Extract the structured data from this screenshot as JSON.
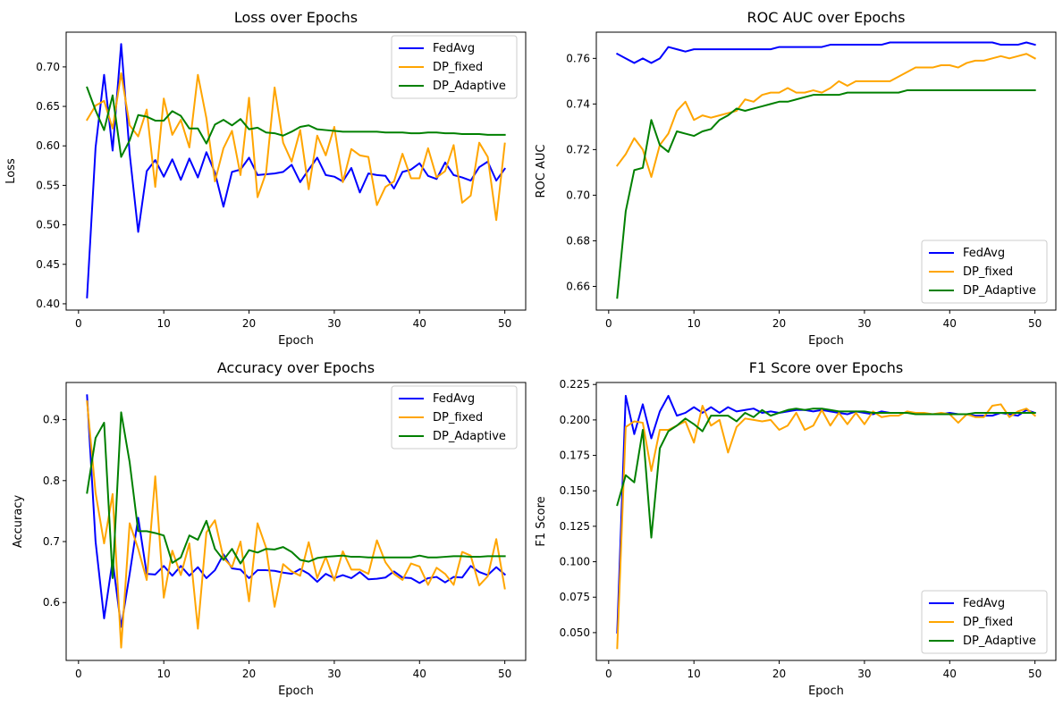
{
  "chart_data": [
    {
      "type": "line",
      "title": "Loss over Epochs",
      "xlabel": "Epoch",
      "ylabel": "Loss",
      "xlim": [
        -1.45,
        52.45
      ],
      "ylim": [
        0.392,
        0.744
      ],
      "xticks": [
        0,
        10,
        20,
        30,
        40,
        50
      ],
      "yticks": [
        0.4,
        0.45,
        0.5,
        0.55,
        0.6,
        0.65,
        0.7
      ],
      "ytick_format": 2,
      "legend": "top-right",
      "series": [
        {
          "name": "FedAvg",
          "color": "#0000ff",
          "values": [
            0.408,
            0.598,
            0.69,
            0.594,
            0.729,
            0.59,
            0.491,
            0.568,
            0.582,
            0.561,
            0.583,
            0.557,
            0.584,
            0.56,
            0.592,
            0.566,
            0.523,
            0.567,
            0.57,
            0.585,
            0.563,
            0.564,
            0.565,
            0.567,
            0.576,
            0.554,
            0.57,
            0.585,
            0.563,
            0.561,
            0.555,
            0.572,
            0.541,
            0.565,
            0.563,
            0.562,
            0.546,
            0.567,
            0.57,
            0.578,
            0.562,
            0.558,
            0.579,
            0.563,
            0.56,
            0.556,
            0.573,
            0.58,
            0.556,
            0.571
          ]
        },
        {
          "name": "DP_fixed",
          "color": "#ffa500",
          "values": [
            0.633,
            0.651,
            0.657,
            0.622,
            0.692,
            0.626,
            0.612,
            0.646,
            0.548,
            0.66,
            0.614,
            0.633,
            0.598,
            0.69,
            0.635,
            0.555,
            0.597,
            0.619,
            0.563,
            0.661,
            0.535,
            0.566,
            0.674,
            0.604,
            0.58,
            0.62,
            0.545,
            0.613,
            0.588,
            0.624,
            0.554,
            0.596,
            0.588,
            0.586,
            0.525,
            0.548,
            0.555,
            0.59,
            0.559,
            0.559,
            0.597,
            0.56,
            0.568,
            0.601,
            0.528,
            0.537,
            0.604,
            0.586,
            0.506,
            0.603
          ]
        },
        {
          "name": "DP_Adaptive",
          "color": "#008000",
          "values": [
            0.674,
            0.645,
            0.62,
            0.664,
            0.586,
            0.607,
            0.639,
            0.637,
            0.632,
            0.632,
            0.644,
            0.638,
            0.622,
            0.622,
            0.603,
            0.627,
            0.633,
            0.626,
            0.634,
            0.621,
            0.623,
            0.617,
            0.616,
            0.613,
            0.618,
            0.624,
            0.626,
            0.621,
            0.62,
            0.619,
            0.618,
            0.618,
            0.618,
            0.618,
            0.618,
            0.617,
            0.617,
            0.617,
            0.616,
            0.616,
            0.617,
            0.617,
            0.616,
            0.616,
            0.615,
            0.615,
            0.615,
            0.614,
            0.614,
            0.614
          ]
        }
      ]
    },
    {
      "type": "line",
      "title": "ROC AUC over Epochs",
      "xlabel": "Epoch",
      "ylabel": "ROC AUC",
      "xlim": [
        -1.45,
        52.45
      ],
      "ylim": [
        0.6496,
        0.7715
      ],
      "xticks": [
        0,
        10,
        20,
        30,
        40,
        50
      ],
      "yticks": [
        0.66,
        0.68,
        0.7,
        0.72,
        0.74,
        0.76
      ],
      "ytick_format": 2,
      "legend": "bottom-right",
      "series": [
        {
          "name": "FedAvg",
          "color": "#0000ff",
          "values": [
            0.762,
            0.76,
            0.758,
            0.76,
            0.758,
            0.76,
            0.765,
            0.764,
            0.763,
            0.764,
            0.764,
            0.764,
            0.764,
            0.764,
            0.764,
            0.764,
            0.764,
            0.764,
            0.764,
            0.765,
            0.765,
            0.765,
            0.765,
            0.765,
            0.765,
            0.766,
            0.766,
            0.766,
            0.766,
            0.766,
            0.766,
            0.766,
            0.767,
            0.767,
            0.767,
            0.767,
            0.767,
            0.767,
            0.767,
            0.767,
            0.767,
            0.767,
            0.767,
            0.767,
            0.767,
            0.766,
            0.766,
            0.766,
            0.767,
            0.766
          ]
        },
        {
          "name": "DP_fixed",
          "color": "#ffa500",
          "values": [
            0.713,
            0.718,
            0.725,
            0.72,
            0.708,
            0.722,
            0.727,
            0.737,
            0.741,
            0.733,
            0.735,
            0.734,
            0.735,
            0.736,
            0.737,
            0.742,
            0.741,
            0.744,
            0.745,
            0.745,
            0.747,
            0.745,
            0.745,
            0.746,
            0.745,
            0.747,
            0.75,
            0.748,
            0.75,
            0.75,
            0.75,
            0.75,
            0.75,
            0.752,
            0.754,
            0.756,
            0.756,
            0.756,
            0.757,
            0.757,
            0.756,
            0.758,
            0.759,
            0.759,
            0.76,
            0.761,
            0.76,
            0.761,
            0.762,
            0.76
          ]
        },
        {
          "name": "DP_Adaptive",
          "color": "#008000",
          "values": [
            0.655,
            0.693,
            0.711,
            0.712,
            0.733,
            0.722,
            0.719,
            0.728,
            0.727,
            0.726,
            0.728,
            0.729,
            0.733,
            0.735,
            0.738,
            0.737,
            0.738,
            0.739,
            0.74,
            0.741,
            0.741,
            0.742,
            0.743,
            0.744,
            0.744,
            0.744,
            0.744,
            0.745,
            0.745,
            0.745,
            0.745,
            0.745,
            0.745,
            0.745,
            0.746,
            0.746,
            0.746,
            0.746,
            0.746,
            0.746,
            0.746,
            0.746,
            0.746,
            0.746,
            0.746,
            0.746,
            0.746,
            0.746,
            0.746,
            0.746
          ]
        }
      ]
    },
    {
      "type": "line",
      "title": "Accuracy over Epochs",
      "xlabel": "Epoch",
      "ylabel": "Accuracy",
      "xlim": [
        -1.45,
        52.45
      ],
      "ylim": [
        0.505,
        0.961
      ],
      "xticks": [
        0,
        10,
        20,
        30,
        40,
        50
      ],
      "yticks": [
        0.6,
        0.7,
        0.8,
        0.9
      ],
      "ytick_format": 1,
      "legend": "top-right",
      "series": [
        {
          "name": "FedAvg",
          "color": "#0000ff",
          "values": [
            0.94,
            0.7,
            0.574,
            0.669,
            0.56,
            0.647,
            0.739,
            0.647,
            0.646,
            0.66,
            0.644,
            0.66,
            0.644,
            0.658,
            0.64,
            0.653,
            0.679,
            0.656,
            0.654,
            0.64,
            0.653,
            0.653,
            0.652,
            0.649,
            0.647,
            0.655,
            0.647,
            0.634,
            0.647,
            0.64,
            0.645,
            0.64,
            0.65,
            0.638,
            0.639,
            0.641,
            0.651,
            0.641,
            0.64,
            0.632,
            0.64,
            0.642,
            0.633,
            0.642,
            0.641,
            0.66,
            0.65,
            0.645,
            0.658,
            0.646
          ]
        },
        {
          "name": "DP_fixed",
          "color": "#ffa500",
          "values": [
            0.93,
            0.78,
            0.697,
            0.778,
            0.526,
            0.73,
            0.688,
            0.637,
            0.807,
            0.608,
            0.685,
            0.645,
            0.697,
            0.557,
            0.715,
            0.735,
            0.673,
            0.658,
            0.7,
            0.602,
            0.73,
            0.69,
            0.593,
            0.663,
            0.651,
            0.644,
            0.699,
            0.64,
            0.675,
            0.636,
            0.684,
            0.654,
            0.654,
            0.647,
            0.702,
            0.666,
            0.647,
            0.637,
            0.664,
            0.659,
            0.629,
            0.657,
            0.647,
            0.629,
            0.683,
            0.677,
            0.628,
            0.643,
            0.704,
            0.623
          ]
        },
        {
          "name": "DP_Adaptive",
          "color": "#008000",
          "values": [
            0.78,
            0.87,
            0.895,
            0.64,
            0.912,
            0.83,
            0.717,
            0.717,
            0.714,
            0.71,
            0.665,
            0.674,
            0.71,
            0.703,
            0.734,
            0.688,
            0.67,
            0.688,
            0.664,
            0.686,
            0.682,
            0.688,
            0.687,
            0.691,
            0.683,
            0.67,
            0.667,
            0.673,
            0.675,
            0.676,
            0.677,
            0.675,
            0.675,
            0.674,
            0.674,
            0.674,
            0.674,
            0.674,
            0.674,
            0.677,
            0.674,
            0.674,
            0.675,
            0.676,
            0.676,
            0.675,
            0.675,
            0.676,
            0.676,
            0.676
          ]
        }
      ]
    },
    {
      "type": "line",
      "title": "F1 Score over Epochs",
      "xlabel": "Epoch",
      "ylabel": "F1 Score",
      "xlim": [
        -1.45,
        52.45
      ],
      "ylim": [
        0.0304,
        0.2264
      ],
      "xticks": [
        0,
        10,
        20,
        30,
        40,
        50
      ],
      "yticks": [
        0.05,
        0.075,
        0.1,
        0.125,
        0.15,
        0.175,
        0.2,
        0.225
      ],
      "ytick_format": 3,
      "legend": "bottom-right",
      "series": [
        {
          "name": "FedAvg",
          "color": "#0000ff",
          "values": [
            0.05,
            0.217,
            0.19,
            0.211,
            0.187,
            0.206,
            0.217,
            0.203,
            0.205,
            0.209,
            0.205,
            0.209,
            0.205,
            0.209,
            0.206,
            0.207,
            0.208,
            0.205,
            0.206,
            0.205,
            0.206,
            0.207,
            0.207,
            0.206,
            0.207,
            0.206,
            0.205,
            0.204,
            0.206,
            0.205,
            0.204,
            0.206,
            0.205,
            0.205,
            0.205,
            0.205,
            0.204,
            0.204,
            0.204,
            0.205,
            0.204,
            0.204,
            0.203,
            0.203,
            0.203,
            0.205,
            0.204,
            0.203,
            0.207,
            0.205
          ]
        },
        {
          "name": "DP_fixed",
          "color": "#ffa500",
          "values": [
            0.039,
            0.195,
            0.199,
            0.198,
            0.164,
            0.193,
            0.193,
            0.196,
            0.199,
            0.184,
            0.21,
            0.196,
            0.2,
            0.177,
            0.195,
            0.201,
            0.2,
            0.199,
            0.2,
            0.193,
            0.196,
            0.205,
            0.193,
            0.196,
            0.207,
            0.196,
            0.205,
            0.197,
            0.205,
            0.197,
            0.206,
            0.202,
            0.203,
            0.203,
            0.206,
            0.205,
            0.205,
            0.204,
            0.205,
            0.204,
            0.198,
            0.204,
            0.202,
            0.202,
            0.21,
            0.211,
            0.202,
            0.206,
            0.208,
            0.203
          ]
        },
        {
          "name": "DP_Adaptive",
          "color": "#008000",
          "values": [
            0.14,
            0.161,
            0.156,
            0.193,
            0.117,
            0.18,
            0.192,
            0.196,
            0.201,
            0.197,
            0.192,
            0.203,
            0.203,
            0.203,
            0.199,
            0.205,
            0.202,
            0.207,
            0.203,
            0.205,
            0.207,
            0.208,
            0.207,
            0.208,
            0.208,
            0.207,
            0.206,
            0.206,
            0.206,
            0.206,
            0.205,
            0.205,
            0.205,
            0.205,
            0.205,
            0.204,
            0.204,
            0.204,
            0.204,
            0.204,
            0.204,
            0.204,
            0.205,
            0.205,
            0.205,
            0.205,
            0.205,
            0.205,
            0.205,
            0.205
          ]
        }
      ]
    }
  ]
}
